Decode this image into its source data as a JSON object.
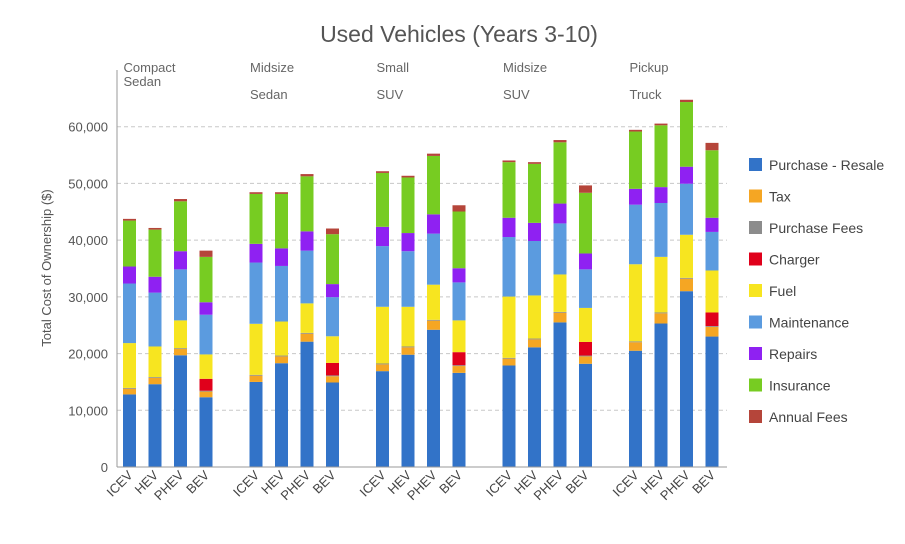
{
  "chart_data": {
    "type": "bar",
    "stacked": true,
    "title": "Used Vehicles (Years 3-10)",
    "ylabel": "Total Cost of Ownership ($)",
    "ylim": [
      0,
      70000
    ],
    "yticks": [
      0,
      10000,
      20000,
      30000,
      40000,
      50000,
      60000
    ],
    "ytick_labels": [
      "0",
      "10,000",
      "20,000",
      "30,000",
      "40,000",
      "50,000",
      "60,000"
    ],
    "grid": true,
    "legend_position": "right",
    "groups": [
      {
        "label_lines": [
          "Compact",
          "Sedan"
        ],
        "categories": [
          "ICEV",
          "HEV",
          "PHEV",
          "BEV"
        ]
      },
      {
        "label_lines": [
          "Midsize",
          "Sedan"
        ],
        "categories": [
          "ICEV",
          "HEV",
          "PHEV",
          "BEV"
        ]
      },
      {
        "label_lines": [
          "Small",
          "SUV"
        ],
        "categories": [
          "ICEV",
          "HEV",
          "PHEV",
          "BEV"
        ]
      },
      {
        "label_lines": [
          "Midsize",
          "SUV"
        ],
        "categories": [
          "ICEV",
          "HEV",
          "PHEV",
          "BEV"
        ]
      },
      {
        "label_lines": [
          "Pickup",
          "Truck"
        ],
        "categories": [
          "ICEV",
          "HEV",
          "PHEV",
          "BEV"
        ]
      }
    ],
    "series": [
      {
        "name": "Purchase - Resale",
        "color": "#3273c8",
        "values": [
          12800,
          14600,
          19700,
          12300,
          15000,
          18300,
          22100,
          14900,
          16900,
          19800,
          24200,
          16600,
          17900,
          21100,
          25500,
          18200,
          20500,
          25300,
          31000,
          23000
        ]
      },
      {
        "name": "Tax",
        "color": "#f5a623",
        "values": [
          1000,
          1100,
          1100,
          1000,
          1100,
          1200,
          1400,
          1100,
          1200,
          1300,
          1600,
          1200,
          1200,
          1400,
          1700,
          1300,
          1500,
          1800,
          2200,
          1700
        ]
      },
      {
        "name": "Purchase Fees",
        "color": "#8c8c8c",
        "values": [
          150,
          150,
          150,
          150,
          150,
          150,
          150,
          150,
          150,
          150,
          150,
          150,
          150,
          150,
          150,
          150,
          150,
          150,
          150,
          150
        ]
      },
      {
        "name": "Charger",
        "color": "#e0001b",
        "values": [
          0,
          0,
          0,
          2100,
          0,
          0,
          0,
          2200,
          0,
          0,
          0,
          2300,
          0,
          0,
          0,
          2400,
          0,
          0,
          0,
          2400
        ]
      },
      {
        "name": "Fuel",
        "color": "#f7e520",
        "values": [
          7900,
          5400,
          4900,
          4300,
          9000,
          6000,
          5200,
          4700,
          10000,
          7000,
          6200,
          5600,
          10800,
          7600,
          6600,
          6000,
          13600,
          9800,
          7600,
          7400
        ]
      },
      {
        "name": "Maintenance",
        "color": "#5b9bdf",
        "values": [
          10500,
          9500,
          9000,
          7000,
          10800,
          9800,
          9300,
          6900,
          10700,
          9800,
          9000,
          6700,
          10500,
          9600,
          9000,
          6800,
          10500,
          9500,
          9000,
          6800
        ]
      },
      {
        "name": "Repairs",
        "color": "#8f21f2",
        "values": [
          3000,
          2800,
          3200,
          2200,
          3300,
          3100,
          3400,
          2300,
          3400,
          3200,
          3400,
          2500,
          3400,
          3200,
          3500,
          2800,
          2800,
          2800,
          3000,
          2500
        ]
      },
      {
        "name": "Insurance",
        "color": "#77cc22",
        "values": [
          8100,
          8300,
          8800,
          8000,
          8800,
          9600,
          9700,
          8800,
          9500,
          9800,
          10300,
          10000,
          9800,
          10400,
          10800,
          10700,
          10100,
          10900,
          11400,
          11900
        ]
      },
      {
        "name": "Annual Fees",
        "color": "#b5453a",
        "values": [
          300,
          300,
          400,
          1100,
          300,
          300,
          400,
          1000,
          300,
          300,
          400,
          1100,
          300,
          300,
          400,
          1300,
          300,
          300,
          400,
          1300
        ]
      }
    ]
  }
}
